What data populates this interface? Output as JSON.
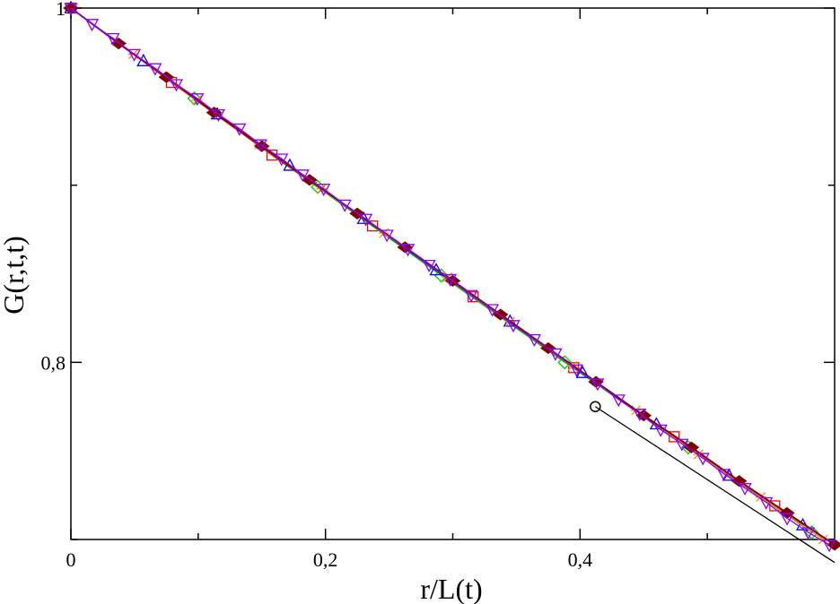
{
  "chart_data": {
    "type": "line",
    "title": "",
    "xlabel": "r/L(t)",
    "ylabel": "G(r,t,t)",
    "xlim": [
      0,
      0.6
    ],
    "ylim": [
      0.7,
      1.0
    ],
    "x_ticks": [
      {
        "value": 0,
        "label": "0"
      },
      {
        "value": 0.2,
        "label": "0,2"
      },
      {
        "value": 0.4,
        "label": "0,4"
      }
    ],
    "y_ticks": [
      {
        "value": 0.8,
        "label": "0,8"
      },
      {
        "value": 1.0,
        "label": "1"
      }
    ],
    "x_minor_ticks": [
      0.1,
      0.3,
      0.5
    ],
    "y_minor_ticks": [
      0.7,
      0.9
    ],
    "grid": false,
    "legend": "none",
    "series": [
      {
        "color": "#000000",
        "marker": "circle",
        "x": [
          0.412,
          0.6
        ],
        "y": [
          0.775,
          0.687
        ]
      },
      {
        "color": "#ff0000",
        "marker": "square",
        "x": [
          0,
          0.079,
          0.158,
          0.237,
          0.316,
          0.395,
          0.474,
          0.553
        ],
        "y": [
          1.0,
          0.958,
          0.917,
          0.877,
          0.837,
          0.797,
          0.758,
          0.719
        ]
      },
      {
        "color": "#00cc00",
        "marker": "diamond",
        "x": [
          0,
          0.097,
          0.194,
          0.291,
          0.388,
          0.485,
          0.582
        ],
        "y": [
          1.0,
          0.949,
          0.899,
          0.849,
          0.8,
          0.752,
          0.704
        ]
      },
      {
        "color": "#0000ff",
        "marker": "triangle-up",
        "x": [
          0,
          0.057,
          0.115,
          0.172,
          0.23,
          0.287,
          0.345,
          0.402,
          0.46,
          0.517,
          0.575
        ],
        "y": [
          1.0,
          0.97,
          0.94,
          0.911,
          0.881,
          0.852,
          0.823,
          0.794,
          0.765,
          0.736,
          0.708
        ]
      },
      {
        "color": "#ff8c00",
        "marker": "cross",
        "x": [
          0,
          0.049,
          0.099,
          0.148,
          0.197,
          0.246,
          0.296,
          0.345,
          0.394,
          0.444,
          0.493,
          0.542,
          0.591
        ],
        "y": [
          1.0,
          0.974,
          0.948,
          0.923,
          0.898,
          0.873,
          0.848,
          0.823,
          0.798,
          0.773,
          0.748,
          0.724,
          0.7
        ]
      },
      {
        "color": "#800000",
        "marker": "diamond-filled",
        "x": [
          0,
          0.0375,
          0.075,
          0.1125,
          0.15,
          0.1875,
          0.225,
          0.2625,
          0.3,
          0.3375,
          0.375,
          0.4125,
          0.45,
          0.4875,
          0.525,
          0.5625,
          0.6
        ],
        "y": [
          1.0,
          0.98,
          0.961,
          0.941,
          0.922,
          0.903,
          0.884,
          0.865,
          0.846,
          0.827,
          0.808,
          0.789,
          0.77,
          0.752,
          0.733,
          0.715,
          0.697
        ]
      },
      {
        "color": "#8b00ff",
        "marker": "triangle-down",
        "x": [
          0,
          0.0166,
          0.0331,
          0.0497,
          0.0662,
          0.0828,
          0.0993,
          0.1159,
          0.1324,
          0.149,
          0.1655,
          0.1821,
          0.1986,
          0.2152,
          0.2317,
          0.2483,
          0.2648,
          0.2814,
          0.2979,
          0.3145,
          0.331,
          0.3476,
          0.3641,
          0.3807,
          0.3972,
          0.4138,
          0.4303,
          0.4469,
          0.4634,
          0.48,
          0.4965,
          0.5131,
          0.5296,
          0.5462,
          0.5627,
          0.5793,
          0.5958
        ],
        "y": [
          1.0,
          0.991,
          0.983,
          0.974,
          0.966,
          0.957,
          0.949,
          0.94,
          0.932,
          0.923,
          0.915,
          0.906,
          0.898,
          0.889,
          0.881,
          0.872,
          0.864,
          0.855,
          0.847,
          0.838,
          0.83,
          0.821,
          0.813,
          0.805,
          0.796,
          0.788,
          0.779,
          0.771,
          0.762,
          0.754,
          0.746,
          0.737,
          0.729,
          0.721,
          0.712,
          0.704,
          0.697
        ]
      }
    ]
  }
}
